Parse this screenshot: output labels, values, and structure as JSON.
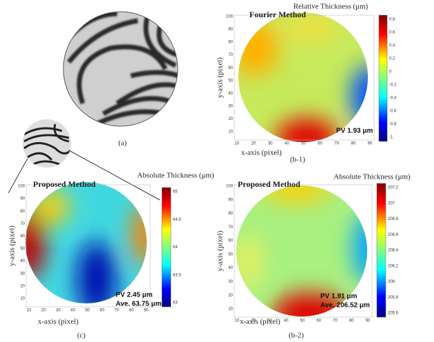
{
  "panels": {
    "a": {
      "label": "(a)"
    },
    "b1": {
      "label": "(b-1)",
      "title": "Fourier Method",
      "colorbar_title": "Relative Thickness (μm)",
      "x_axis_label": "x-axis (pixel)",
      "y_axis_label": "y-axis (pixel)",
      "xticks": [
        10,
        20,
        30,
        40,
        50,
        60,
        70,
        80,
        90
      ],
      "yticks": [
        10,
        20,
        30,
        40,
        50,
        60,
        70,
        80,
        90,
        100
      ],
      "colorbar_ticks": [
        0.8,
        0.6,
        0.4,
        0.2,
        0,
        -0.2,
        -0.4,
        -0.6,
        -0.8,
        -1
      ],
      "annotations": [
        "PV 1.93 μm"
      ]
    },
    "c": {
      "label": "(c)",
      "title": "Proposed Method",
      "colorbar_title": "Absolute Thickness (μm)",
      "x_axis_label": "x-axis (pixel)",
      "y_axis_label": "y-axis (pixel)",
      "xticks": [
        10,
        20,
        30,
        40,
        50,
        60,
        70,
        80,
        90
      ],
      "yticks": [
        10,
        20,
        30,
        40,
        50,
        60,
        70,
        80,
        90,
        100
      ],
      "colorbar_ticks": [
        65,
        64.5,
        64,
        63.5,
        63
      ],
      "annotations": [
        "PV 2.45 μm",
        "Ave. 63.75 μm"
      ]
    },
    "b2": {
      "label": "(b-2)",
      "title": "Proposed Method",
      "colorbar_title": "Absolute Thickness (μm)",
      "x_axis_label": "x-axis (pixel)",
      "y_axis_label": "y-axis (pixel)",
      "xticks": [
        10,
        20,
        30,
        40,
        50,
        60,
        70,
        80,
        90
      ],
      "yticks": [
        10,
        20,
        30,
        40,
        50,
        60,
        70,
        80,
        90,
        100
      ],
      "colorbar_ticks": [
        207.2,
        207,
        206.8,
        206.6,
        206.4,
        206.2,
        206,
        205.8,
        205.6
      ],
      "annotations": [
        "PV 1.91 μm",
        "Ave. 206.52 μm"
      ]
    }
  }
}
